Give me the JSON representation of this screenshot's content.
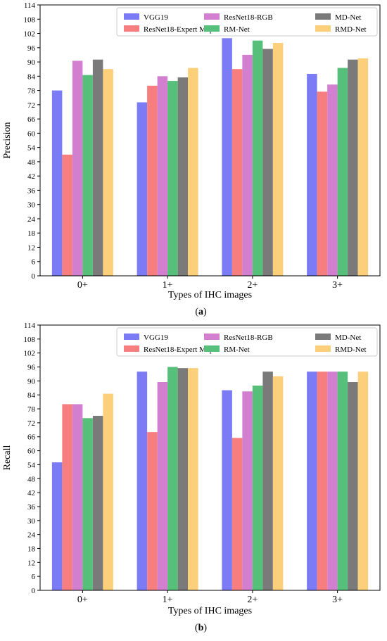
{
  "colors": {
    "VGG19": "#7b7bf5",
    "ResNet18-Expert Map": "#f77e7e",
    "ResNet18-RGB": "#d27fd0",
    "RM-Net": "#56c07a",
    "MD-Net": "#7a7a7a",
    "RMD-Net": "#fccf7a"
  },
  "chart_data": [
    {
      "type": "bar",
      "title": "",
      "xlabel": "Types of IHC images",
      "ylabel": "Precision",
      "caption": "(a)",
      "caption_letter": "a",
      "categories": [
        "0+",
        "1+",
        "2+",
        "3+"
      ],
      "ylim": [
        0,
        114
      ],
      "yticks": [
        "0",
        "6",
        "12",
        "18",
        "24",
        "30",
        "36",
        "42",
        "48",
        "54",
        "60",
        "66",
        "72",
        "78",
        "84",
        "90",
        "96",
        "102",
        "108",
        "114"
      ],
      "legend_position": "top-right",
      "legend_order": [
        "VGG19",
        "ResNet18-RGB",
        "MD-Net",
        "ResNet18-Expert Map",
        "RM-Net",
        "RMD-Net"
      ],
      "series": [
        {
          "name": "VGG19",
          "values": [
            78,
            73,
            100,
            85
          ]
        },
        {
          "name": "ResNet18-Expert Map",
          "values": [
            51,
            80,
            87,
            77.5
          ]
        },
        {
          "name": "ResNet18-RGB",
          "values": [
            90.5,
            84,
            93,
            80.5
          ]
        },
        {
          "name": "RM-Net",
          "values": [
            84.5,
            82,
            99,
            87.5
          ]
        },
        {
          "name": "MD-Net",
          "values": [
            91,
            83.5,
            95.5,
            91
          ]
        },
        {
          "name": "RMD-Net",
          "values": [
            87,
            87.5,
            98,
            91.5
          ]
        }
      ]
    },
    {
      "type": "bar",
      "title": "",
      "xlabel": "Types of IHC images",
      "ylabel": "Recall",
      "caption": "(b)",
      "caption_letter": "b",
      "categories": [
        "0+",
        "1+",
        "2+",
        "3+"
      ],
      "ylim": [
        0,
        114
      ],
      "yticks": [
        "0",
        "6",
        "12",
        "18",
        "24",
        "30",
        "36",
        "42",
        "48",
        "54",
        "60",
        "66",
        "72",
        "78",
        "84",
        "90",
        "96",
        "102",
        "108",
        "114"
      ],
      "legend_position": "top-right",
      "legend_order": [
        "VGG19",
        "ResNet18-RGB",
        "MD-Net",
        "ResNet18-Expert Map",
        "RM-Net",
        "RMD-Net"
      ],
      "series": [
        {
          "name": "VGG19",
          "values": [
            55,
            94,
            86,
            94
          ]
        },
        {
          "name": "ResNet18-Expert Map",
          "values": [
            80,
            68,
            65.5,
            94
          ]
        },
        {
          "name": "ResNet18-RGB",
          "values": [
            80,
            89.5,
            85.5,
            94
          ]
        },
        {
          "name": "RM-Net",
          "values": [
            74,
            96,
            88,
            94
          ]
        },
        {
          "name": "MD-Net",
          "values": [
            75,
            95.5,
            94,
            89.5
          ]
        },
        {
          "name": "RMD-Net",
          "values": [
            84.5,
            95.5,
            92,
            94
          ]
        }
      ]
    }
  ]
}
